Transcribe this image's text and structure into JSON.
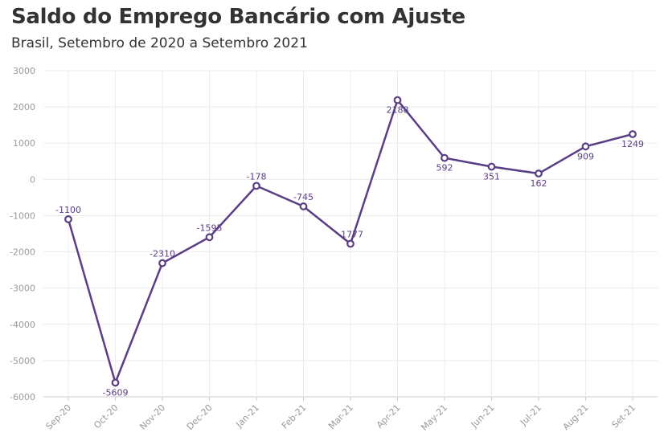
{
  "chart_data": {
    "type": "line",
    "title": "Saldo do Emprego Bancário com Ajuste",
    "subtitle": "Brasil, Setembro de 2020 a Setembro 2021",
    "categories": [
      "Sep-20",
      "Oct-20",
      "Nov-20",
      "Dec-20",
      "Jan-21",
      "Feb-21",
      "Mar-21",
      "Apr-21",
      "May-21",
      "Jun-21",
      "Jul-21",
      "Aug-21",
      "Set-21"
    ],
    "series": [
      {
        "values": [
          -1100,
          -5609,
          -2310,
          -1595,
          -178,
          -745,
          -1777,
          2188,
          592,
          351,
          162,
          909,
          1249
        ]
      }
    ],
    "data_labels": [
      "-1100",
      "-5609",
      "-2310",
      "-1595",
      "-178",
      "-745",
      "-1777",
      "2188",
      "592",
      "351",
      "162",
      "909",
      "1249"
    ],
    "label_position": [
      "above",
      "below",
      "above",
      "above",
      "above",
      "above",
      "above",
      "below",
      "below",
      "below",
      "below",
      "below",
      "below"
    ],
    "yticks": [
      "3000",
      "2000",
      "1000",
      "0",
      "-1000",
      "-2000",
      "-3000",
      "-4000",
      "-5000",
      "-6000"
    ],
    "ylim": [
      -6000,
      3000
    ],
    "xlabel": "",
    "ylabel": "",
    "grid": true,
    "line_color": "#5a3e85"
  }
}
